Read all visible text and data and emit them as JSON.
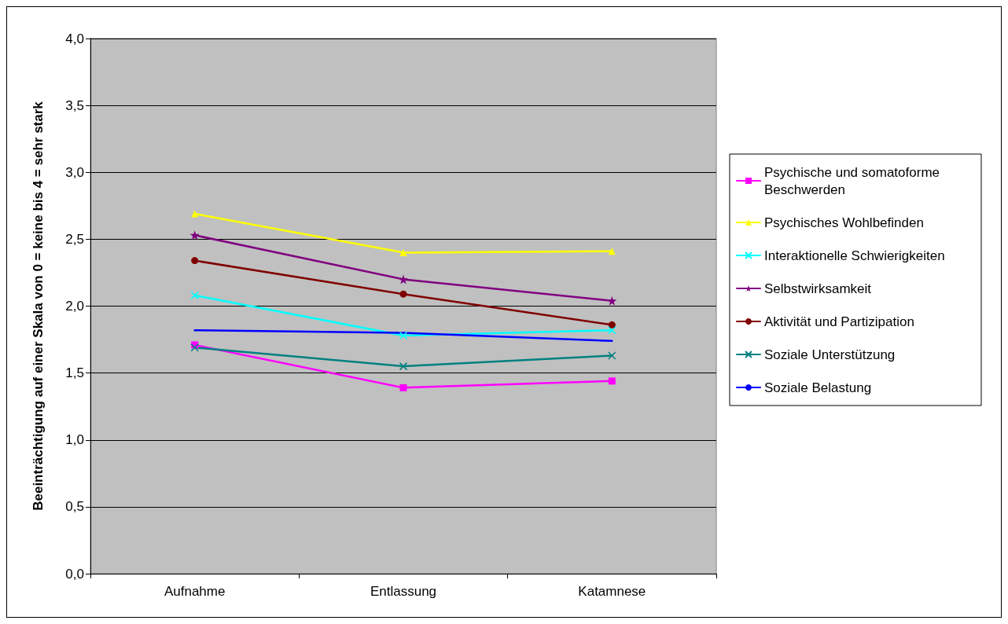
{
  "chart_data": {
    "type": "line",
    "ylabel": "Beeinträchtigung auf einer Skala von 0 = keine bis 4 = sehr stark",
    "categories": [
      "Aufnahme",
      "Entlassung",
      "Katamnese"
    ],
    "series": [
      {
        "name": "Psychische und somatoforme Beschwerden",
        "color": "#ff00ff",
        "marker": "square",
        "values": [
          1.71,
          1.39,
          1.44
        ]
      },
      {
        "name": "Psychisches Wohlbefinden",
        "color": "#ffff00",
        "marker": "triangle",
        "values": [
          2.69,
          2.4,
          2.41
        ]
      },
      {
        "name": "Interaktionelle Schwierigkeiten",
        "color": "#00ffff",
        "marker": "cross",
        "values": [
          2.08,
          1.78,
          1.82
        ]
      },
      {
        "name": "Selbstwirksamkeit",
        "color": "#800080",
        "marker": "star",
        "values": [
          2.53,
          2.2,
          2.04
        ]
      },
      {
        "name": "Aktivität und Partizipation",
        "color": "#800000",
        "marker": "circle",
        "values": [
          2.34,
          2.09,
          1.86
        ]
      },
      {
        "name": "Soziale Unterstützung",
        "color": "#008080",
        "marker": "cross",
        "values": [
          1.69,
          1.55,
          1.63
        ]
      },
      {
        "name": "Soziale Belastung",
        "color": "#0000ff",
        "marker": "none",
        "values": [
          1.82,
          1.8,
          1.74
        ]
      }
    ],
    "ylim": [
      0,
      4
    ],
    "yticks": [
      {
        "value": 0,
        "label": "0,0"
      },
      {
        "value": 0.5,
        "label": "0,5"
      },
      {
        "value": 1,
        "label": "1,0"
      },
      {
        "value": 1.5,
        "label": "1,5"
      },
      {
        "value": 2,
        "label": "2,0"
      },
      {
        "value": 2.5,
        "label": "2,5"
      },
      {
        "value": 3,
        "label": "3,0"
      },
      {
        "value": 3.5,
        "label": "3,5"
      },
      {
        "value": 4,
        "label": "4,0"
      }
    ],
    "grid": "y",
    "legend": "right"
  }
}
